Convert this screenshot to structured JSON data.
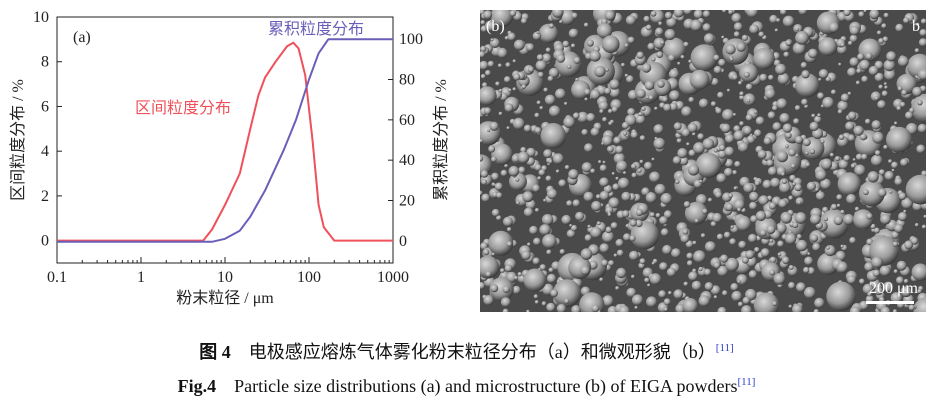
{
  "chart_data": {
    "type": "line",
    "panel_label": "(a)",
    "xlabel": "粉末粒径 / μm",
    "ylabel_left": "区间粒度分布 / %",
    "ylabel_right": "累积粒度分布 / %",
    "x_scale": "log",
    "xlim": [
      0.1,
      1000
    ],
    "ylim_left": [
      -1,
      10
    ],
    "ylim_right": [
      -11,
      111
    ],
    "x_ticks": [
      "0.1",
      "1",
      "10",
      "100",
      "1000"
    ],
    "y_ticks_left": [
      "0",
      "2",
      "4",
      "6",
      "8",
      "10"
    ],
    "y_ticks_right": [
      "0",
      "20",
      "40",
      "60",
      "80",
      "100"
    ],
    "series": [
      {
        "name": "区间粒度分布",
        "axis": "left",
        "color": "#f0505a",
        "x": [
          0.1,
          5.5,
          7,
          10,
          15,
          20,
          25,
          30,
          40,
          55,
          65,
          75,
          90,
          110,
          130,
          150,
          200,
          1000
        ],
        "y": [
          0,
          0,
          0.5,
          1.6,
          3.0,
          5.0,
          6.5,
          7.3,
          8.0,
          8.7,
          8.85,
          8.6,
          7.4,
          4.5,
          1.6,
          0.6,
          0,
          0
        ]
      },
      {
        "name": "累积粒度分布",
        "axis": "right",
        "color": "#6a5fb8",
        "x": [
          0.1,
          7,
          10,
          15,
          20,
          30,
          50,
          70,
          100,
          130,
          170,
          1000
        ],
        "y": [
          -0.5,
          -0.5,
          1,
          5,
          12,
          25,
          45,
          60,
          80,
          93,
          100,
          100
        ]
      }
    ]
  },
  "sem": {
    "panel_label": "(b)",
    "corner_label": "b",
    "scale_bar": "200 μm"
  },
  "caption": {
    "cn_fig": "图 4",
    "cn_text": "电极感应熔炼气体雾化粉末粒径分布（a）和微观形貌（b）",
    "en_fig": "Fig.4",
    "en_text": "Particle size distributions (a) and microstructure (b) of EIGA powders",
    "ref": "[11]"
  }
}
